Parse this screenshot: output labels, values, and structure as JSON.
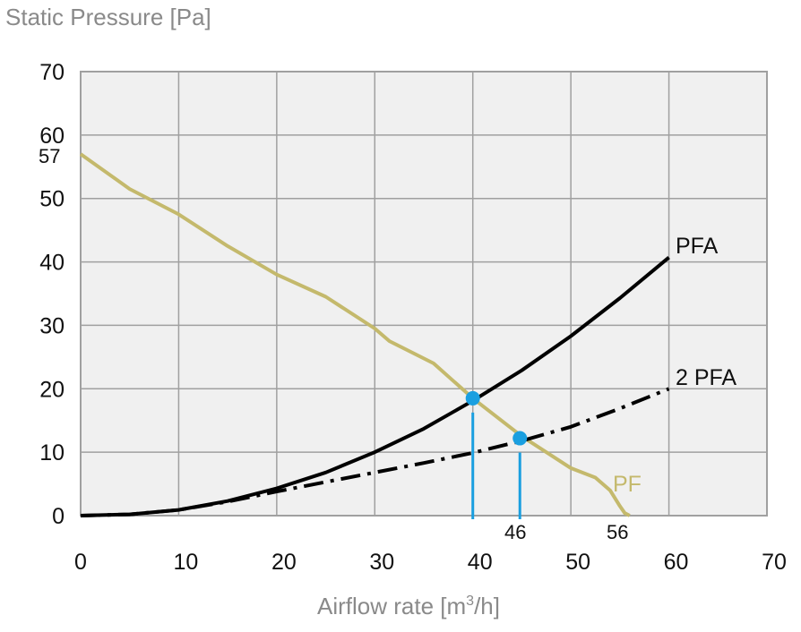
{
  "chart_data": {
    "type": "line",
    "ylabel": "Static Pressure [Pa]",
    "xlabel_main": "Airflow rate [m",
    "xlabel_sup": "3",
    "xlabel_end": "/h]",
    "xlim": [
      0,
      70
    ],
    "ylim": [
      0,
      70
    ],
    "xticks": [
      "0",
      "10",
      "20",
      "30",
      "40",
      "50",
      "60",
      "70"
    ],
    "yticks": [
      "0",
      "10",
      "20",
      "30",
      "40",
      "50",
      "60",
      "70"
    ],
    "grid": true,
    "extra_y_label": "57",
    "extra_x_labels": [
      "46",
      "56"
    ],
    "colors": {
      "background": "#f0f0f0",
      "grid": "#a0a0a0",
      "pf": "#c4b96c",
      "curve": "#000000",
      "marker": "#1a9fe0"
    },
    "series": [
      {
        "name": "PF",
        "style": "solid",
        "x": [
          0,
          5,
          10,
          15,
          20,
          25,
          30,
          31.5,
          36,
          40,
          45,
          50,
          52.5,
          54,
          55,
          55.5,
          56
        ],
        "y": [
          57,
          51.5,
          47.5,
          42.5,
          38,
          34.5,
          29.5,
          27.5,
          24,
          18.5,
          12.5,
          7.5,
          6,
          4,
          1.5,
          0.4,
          0
        ]
      },
      {
        "name": "PFA",
        "style": "solid",
        "x": [
          0,
          5,
          10,
          15,
          20,
          25,
          30,
          35,
          40,
          45,
          50,
          55,
          60
        ],
        "y": [
          0,
          0.2,
          0.9,
          2.3,
          4.3,
          6.8,
          10,
          13.7,
          18.1,
          22.9,
          28.3,
          34.3,
          40.7
        ]
      },
      {
        "name": "2 PFA",
        "style": "dashdot",
        "x": [
          0,
          5,
          10,
          15,
          20,
          25,
          30,
          35,
          40,
          45,
          50,
          55,
          60
        ],
        "y": [
          0,
          0.2,
          0.9,
          2.2,
          3.8,
          5.3,
          6.8,
          8.3,
          9.9,
          11.8,
          14,
          16.9,
          20
        ]
      }
    ],
    "operating_points": [
      {
        "x": 40,
        "y": 18.5
      },
      {
        "x": 44.8,
        "y": 12.2
      }
    ]
  }
}
